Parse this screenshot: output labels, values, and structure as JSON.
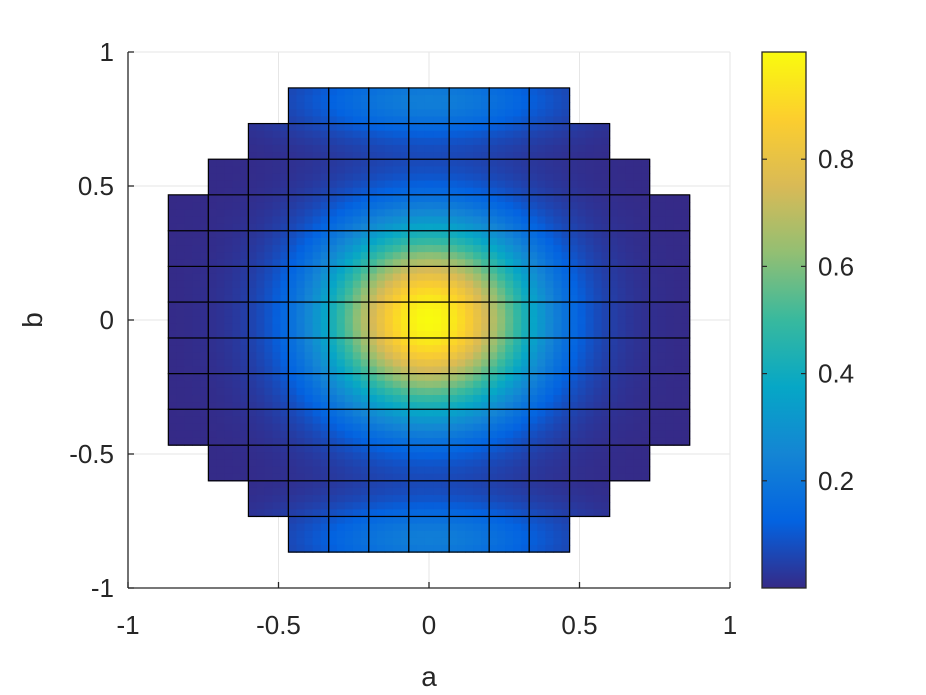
{
  "chart_data": {
    "type": "heatmap",
    "title": "",
    "xlabel": "a",
    "ylabel": "b",
    "xlim": [
      -1,
      1
    ],
    "ylim": [
      -1,
      1
    ],
    "grid": true,
    "xticks": [
      -1,
      -0.5,
      0,
      0.5,
      1
    ],
    "yticks": [
      -1,
      -0.5,
      0,
      0.5,
      1
    ],
    "xtick_labels": [
      "-1",
      "-0.5",
      "0",
      "0.5",
      "1"
    ],
    "ytick_labels": [
      "-1",
      "-0.5",
      "0",
      "0.5",
      "1"
    ],
    "mesh": {
      "x_edges": [
        -0.866,
        -0.733,
        -0.6,
        -0.467,
        -0.333,
        -0.2,
        -0.067,
        0.067,
        0.2,
        0.333,
        0.467,
        0.6,
        0.733,
        0.866
      ],
      "y_edges": [
        -0.866,
        -0.733,
        -0.6,
        -0.467,
        -0.333,
        -0.2,
        -0.067,
        0.067,
        0.2,
        0.333,
        0.467,
        0.6,
        0.733,
        0.866
      ],
      "row_column_ranges": [
        [
          3,
          9
        ],
        [
          2,
          10
        ],
        [
          1,
          11
        ],
        [
          0,
          12
        ],
        [
          0,
          12
        ],
        [
          0,
          12
        ],
        [
          0,
          12
        ],
        [
          0,
          12
        ],
        [
          0,
          12
        ],
        [
          0,
          12
        ],
        [
          1,
          11
        ],
        [
          2,
          10
        ],
        [
          3,
          9
        ]
      ],
      "value_function": "exp(-(a^2+b^2)/0.12) + 0.22*exp(-(|b|-0.82)^2/0.02)*exp(-a^2/0.18)"
    },
    "colorbar": {
      "colormap": "parula",
      "limits": [
        0,
        1
      ],
      "ticks": [
        0.2,
        0.4,
        0.6,
        0.8
      ],
      "tick_labels": [
        "0.2",
        "0.4",
        "0.6",
        "0.8"
      ]
    },
    "colors": {
      "grid": "#e6e6e6",
      "axis": "#262626",
      "cell_edge": "#000000"
    }
  }
}
